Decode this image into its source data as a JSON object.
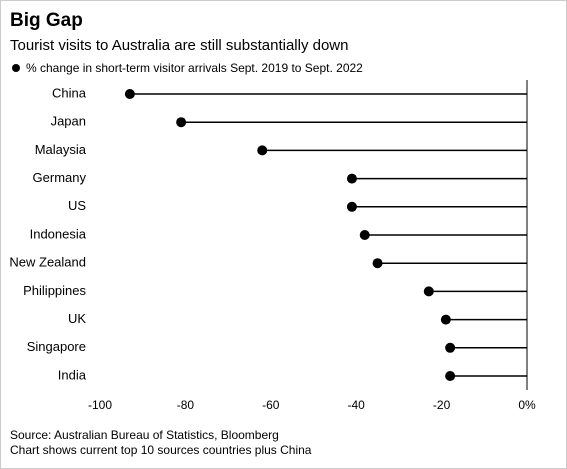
{
  "chart_data": {
    "type": "lollipop",
    "title": "Big Gap",
    "subtitle": "Tourist visits to Australia are still substantially down",
    "categories": [
      "China",
      "Japan",
      "Malaysia",
      "Germany",
      "US",
      "Indonesia",
      "New Zealand",
      "Philippines",
      "UK",
      "Singapore",
      "India"
    ],
    "series": [
      {
        "name": "% change in short-term visitor arrivals Sept. 2019 to Sept. 2022",
        "color": "#000000",
        "values": [
          -93,
          -81,
          -62,
          -41,
          -41,
          -38,
          -35,
          -23,
          -19,
          -18,
          -18
        ]
      }
    ],
    "xlim": [
      -100,
      0
    ],
    "xticks": [
      -100,
      -80,
      -60,
      -40,
      -20,
      {
        "value": 0,
        "label": "0%"
      }
    ],
    "grid": false,
    "notes": [
      "Source: Australian Bureau of Statistics, Bloomberg",
      "Chart shows current top 10 sources countries plus China"
    ]
  }
}
